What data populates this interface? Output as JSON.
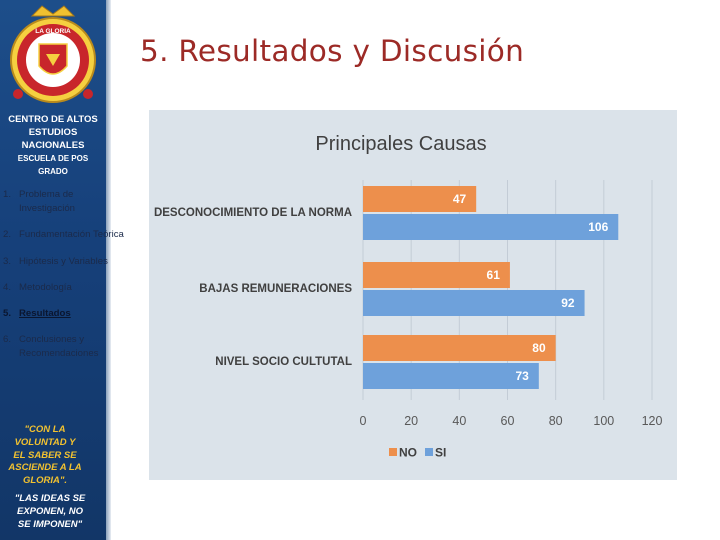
{
  "slide": {
    "title": "5. Resultados y Discusión"
  },
  "sidebar": {
    "institution_lines": [
      "CENTRO DE ALTOS",
      "ESTUDIOS",
      "NACIONALES",
      "ESCUELA DE POS",
      "GRADO"
    ],
    "nav": [
      {
        "num": "1.",
        "label": "Problema de Investigación",
        "active": false
      },
      {
        "num": "2.",
        "label": "Fundamentación Teórica",
        "active": false
      },
      {
        "num": "3.",
        "label": "Hipótesis y Variables",
        "active": false
      },
      {
        "num": "4.",
        "label": "Metodología",
        "active": false
      },
      {
        "num": "5.",
        "label": "Resultados",
        "active": true
      },
      {
        "num": "6.",
        "label": "Conclusiones y Recomendaciones",
        "active": false
      }
    ],
    "motto1_lines": [
      "\"CON LA",
      "VOLUNTAD Y",
      "EL SABER SE",
      "ASCIENDE A LA",
      "GLORIA\"."
    ],
    "motto2_lines": [
      "\"LAS IDEAS SE",
      "EXPONEN, NO",
      "SE IMPONEN\""
    ],
    "logo_text": "LA GLORIA"
  },
  "chart_data": {
    "type": "bar",
    "orientation": "horizontal",
    "title": "Principales Causas",
    "categories": [
      "DESCONOCIMIENTO DE LA NORMA",
      "BAJAS REMUNERACIONES",
      "NIVEL SOCIO CULTUTAL"
    ],
    "series": [
      {
        "name": "NO",
        "values": [
          47,
          61,
          80
        ],
        "color": "#ed8f4c"
      },
      {
        "name": "SI",
        "values": [
          106,
          92,
          73
        ],
        "color": "#6ea1db"
      }
    ],
    "xlim": [
      0,
      120
    ],
    "xticks": [
      0,
      20,
      40,
      60,
      80,
      100,
      120
    ],
    "grid": true,
    "legend": "bottom",
    "data_labels": true
  }
}
